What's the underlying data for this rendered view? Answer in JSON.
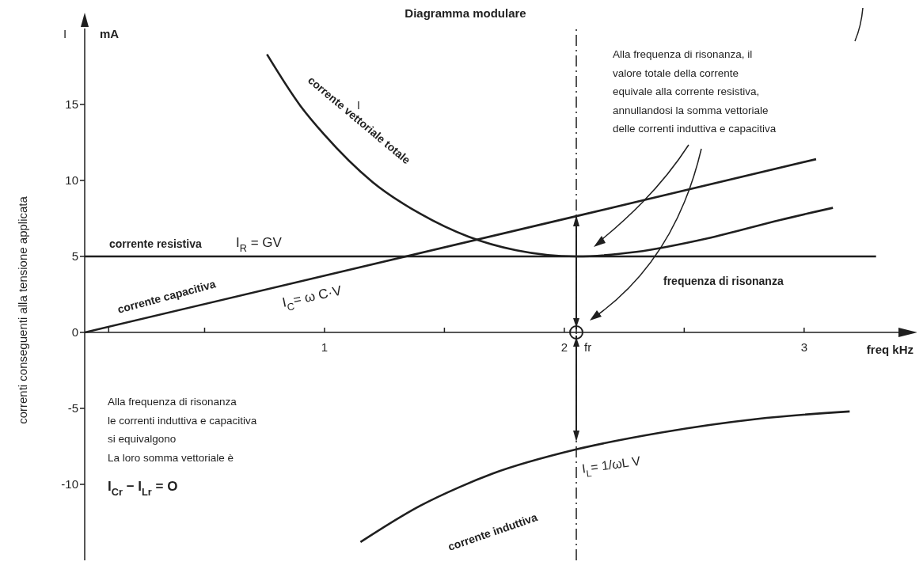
{
  "chart_data": {
    "type": "line",
    "title": "Diagramma modulare",
    "xlabel": "freq kHz",
    "ylabel": "correnti conseguenti alla tensione applicata",
    "xlim": [
      0,
      3.4
    ],
    "ylim": [
      -15,
      20
    ],
    "xticks": [
      {
        "value": 0.1,
        "label": null
      },
      {
        "value": 0.5,
        "label": null
      },
      1,
      {
        "value": 1.5,
        "label": null
      },
      2,
      {
        "value": 2.5,
        "label": null
      },
      3
    ],
    "yticks": [
      -10,
      -5,
      0,
      5,
      10,
      15
    ],
    "grid": false,
    "marker": "none",
    "line_style": "solid",
    "series": [
      {
        "name": "corrente resistiva",
        "color": "#1f1f1f",
        "x": [
          0,
          3.3
        ],
        "values": [
          5,
          5
        ]
      },
      {
        "name": "corrente capacitiva",
        "color": "#1f1f1f",
        "x": [
          0,
          2.05,
          3.05
        ],
        "values": [
          0,
          7.65,
          11.4
        ]
      },
      {
        "name": "corrente vettoriale totale",
        "color": "#1f1f1f",
        "x": [
          0.76,
          0.9,
          1.0,
          1.2,
          1.4,
          1.6,
          1.8,
          2.05,
          2.3,
          2.6,
          2.9,
          3.12
        ],
        "values": [
          18.3,
          14.9,
          13.0,
          9.9,
          7.8,
          6.3,
          5.4,
          5.0,
          5.3,
          6.2,
          7.4,
          8.2
        ]
      },
      {
        "name": "corrente induttiva",
        "color": "#1f1f1f",
        "x": [
          1.15,
          1.4,
          1.56,
          1.7,
          2.05,
          2.4,
          2.8,
          3.19
        ],
        "values": [
          -13.8,
          -11.4,
          -10.2,
          -9.3,
          -7.7,
          -6.6,
          -5.7,
          -5.2
        ]
      }
    ],
    "ref_lines": [
      {
        "axis": "x",
        "value": 2.05,
        "label": "fr",
        "line_style": "dashdot",
        "color": "#1f1f1f"
      },
      {
        "axis": "y",
        "value": 0,
        "color": "#1f1f1f"
      }
    ],
    "annotations": [
      "I",
      "mA",
      "I",
      "I$_{R}$ = GV",
      "I$_{C}$= ω C·V",
      {
        "text": "I$_{L}$= 1/ωL V",
        "x": 2.05,
        "y": -7.7
      },
      "frequenza di risonanza",
      "Alla frequenza di risonanza, il\nvalore totale della corrente\nequivale alla corrente resistiva,\nannullandosi la somma vettoriale\ndelle correnti induttiva e capacitiva",
      "Alla frequenza di risonanza\nle correnti induttiva e capacitiva\nsi equivalgono\nLa loro somma vettoriale è",
      "I$_{Cr}$ − I$_{Lr}$ = O"
    ]
  }
}
